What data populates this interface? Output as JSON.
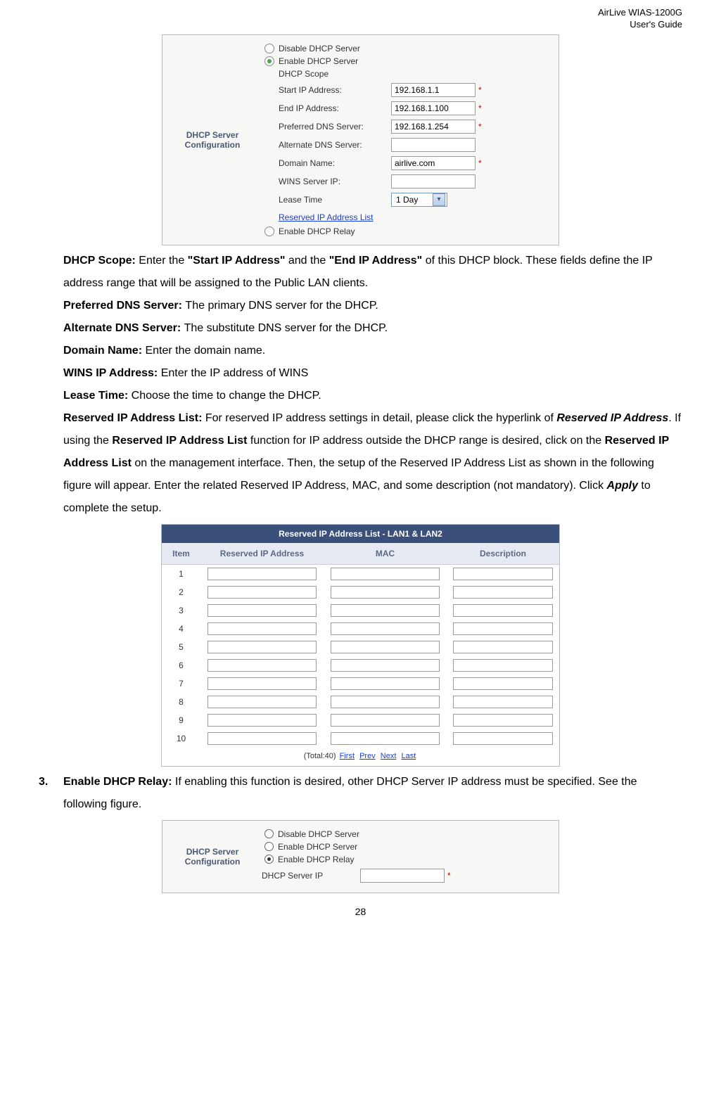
{
  "header": {
    "line1": "AirLive WIAS-1200G",
    "line2": "User's Guide"
  },
  "fig1": {
    "left_label": "DHCP Server Configuration",
    "radio_disable": "Disable DHCP Server",
    "radio_enable": "Enable DHCP Server",
    "scope_title": "DHCP Scope",
    "rows": {
      "start_ip": {
        "label": "Start IP Address:",
        "value": "192.168.1.1",
        "required": true
      },
      "end_ip": {
        "label": "End IP Address:",
        "value": "192.168.1.100",
        "required": true
      },
      "pref_dns": {
        "label": "Preferred DNS Server:",
        "value": "192.168.1.254",
        "required": true
      },
      "alt_dns": {
        "label": "Alternate DNS Server:",
        "value": "",
        "required": false
      },
      "domain": {
        "label": "Domain Name:",
        "value": "airlive.com",
        "required": true
      },
      "wins": {
        "label": "WINS Server IP:",
        "value": "",
        "required": false
      },
      "lease": {
        "label": "Lease Time",
        "value": "1 Day"
      }
    },
    "reserved_link": "Reserved IP Address List",
    "radio_relay": "Enable DHCP Relay"
  },
  "body": {
    "p1_a": "DHCP Scope: ",
    "p1_b": "Enter the ",
    "p1_c": "\"Start IP Address\"",
    "p1_d": " and the ",
    "p1_e": "\"End IP Address\"",
    "p1_f": " of this DHCP block. These fields define the IP address range that will be assigned to the Public LAN clients.",
    "p2_a": "Preferred DNS Server: ",
    "p2_b": "The primary DNS server for the DHCP.",
    "p3_a": "Alternate DNS Server: ",
    "p3_b": "The substitute DNS server for the DHCP.",
    "p4_a": "Domain Name: ",
    "p4_b": "Enter the domain name.",
    "p5_a": "WINS IP Address: ",
    "p5_b": "Enter the IP address of WINS",
    "p6_a": "Lease Time: ",
    "p6_b": "Choose the time to change the DHCP.",
    "p7_a": "Reserved IP Address List: ",
    "p7_b": "For reserved IP address settings in detail, please click the hyperlink of ",
    "p7_c": "Reserved IP Address",
    "p7_d": ". If using the ",
    "p7_e": "Reserved IP Address List",
    "p7_f": " function for IP address outside the DHCP range is desired, click on the ",
    "p7_g": "Reserved IP Address List",
    "p7_h": " on the management interface. Then, the setup of the Reserved IP Address List as shown in the following figure will appear. Enter the related Reserved IP Address, MAC, and some description (not mandatory). Click ",
    "p7_i": "Apply",
    "p7_j": " to complete the setup."
  },
  "fig2": {
    "title": "Reserved IP Address List - LAN1 & LAN2",
    "cols": [
      "Item",
      "Reserved IP Address",
      "MAC",
      "Description"
    ],
    "rows": [
      "1",
      "2",
      "3",
      "4",
      "5",
      "6",
      "7",
      "8",
      "9",
      "10"
    ],
    "total": "(Total:40) ",
    "links": [
      "First",
      "Prev",
      "Next",
      "Last"
    ]
  },
  "item3": {
    "num": "3.",
    "a": "Enable DHCP Relay: ",
    "b": "If enabling this function is desired, other DHCP Server IP address must be specified. See the following figure."
  },
  "fig3": {
    "left_label": "DHCP Server Configuration",
    "radio_disable": "Disable DHCP Server",
    "radio_enable": "Enable DHCP Server",
    "radio_relay": "Enable DHCP Relay",
    "ip_label": "DHCP Server IP",
    "ip_value": ""
  },
  "page_number": "28"
}
